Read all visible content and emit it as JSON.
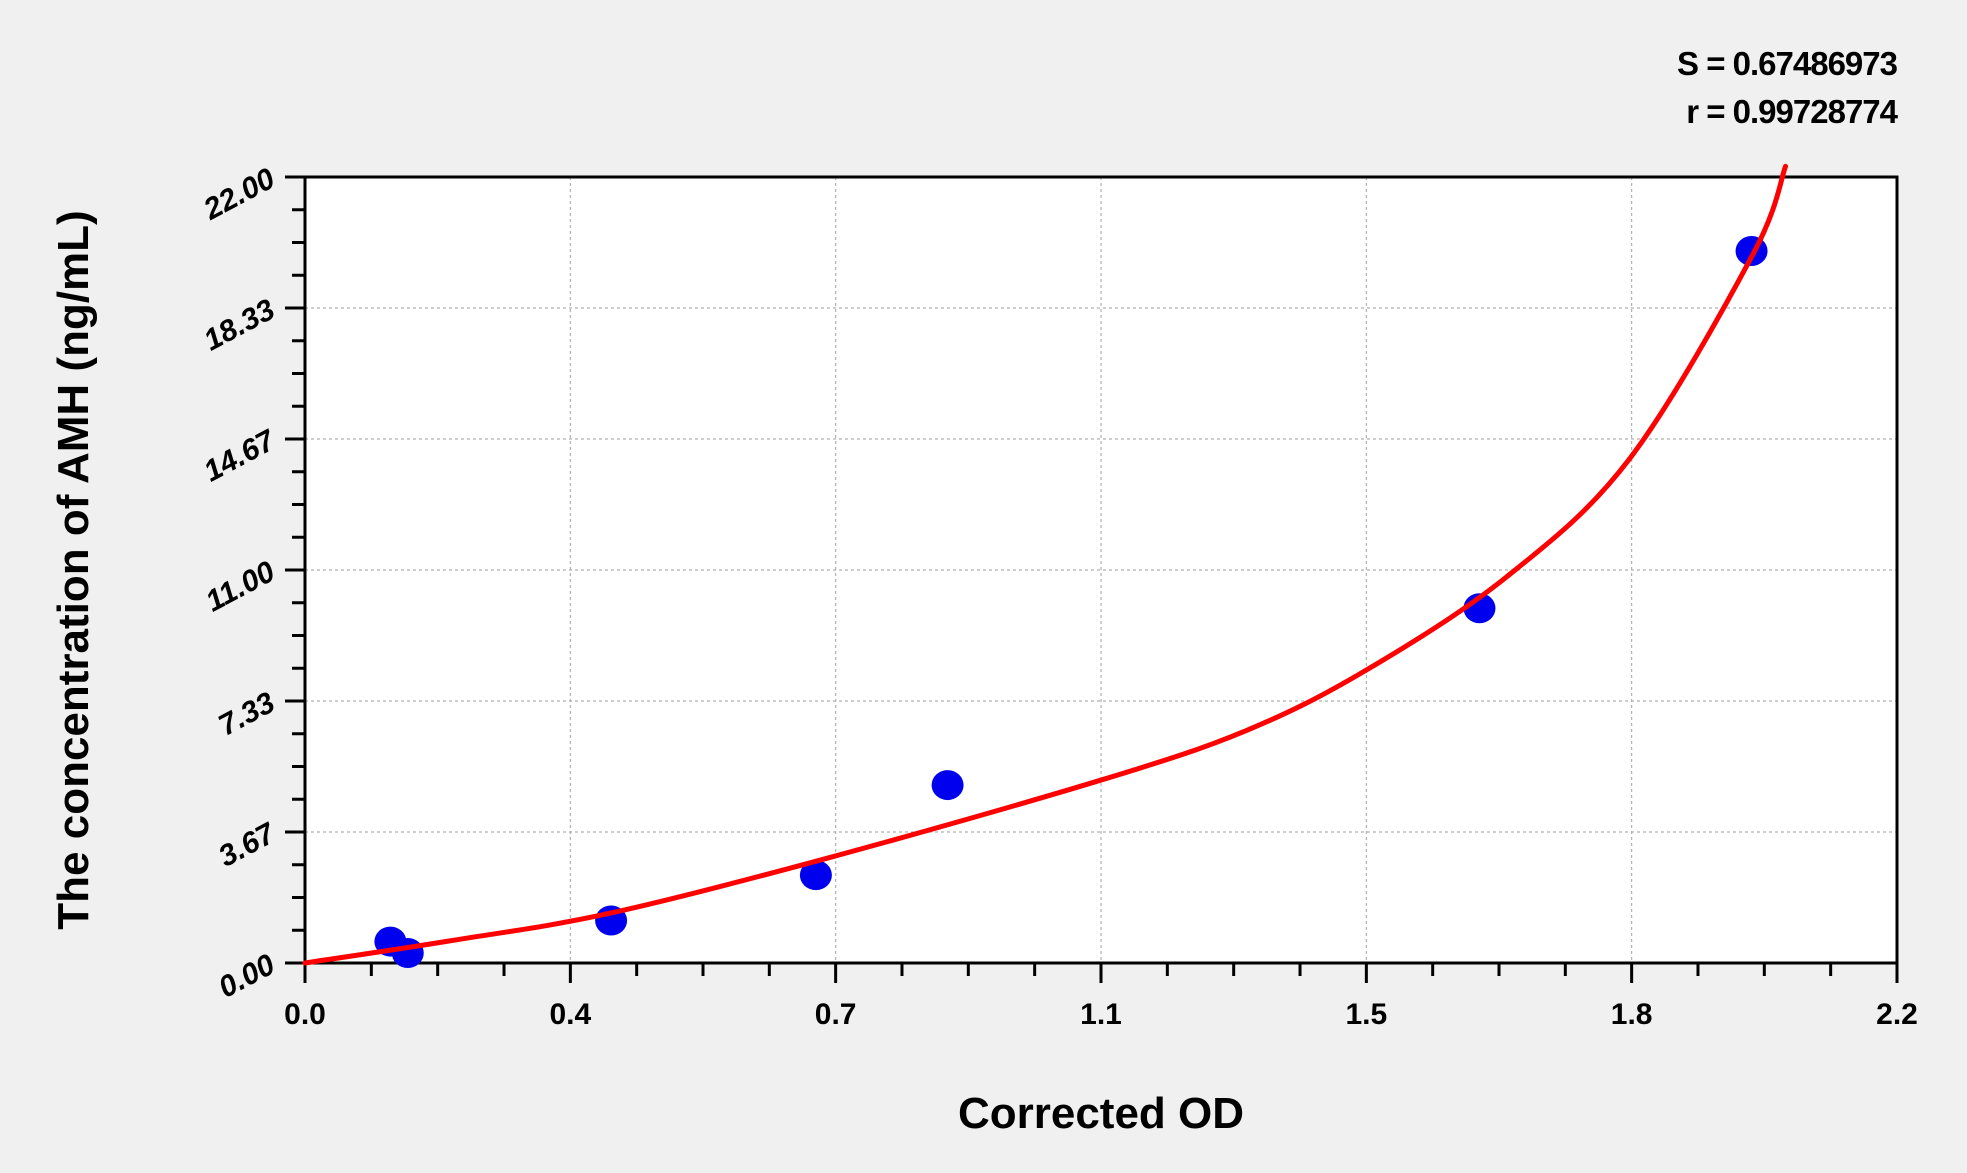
{
  "chart_data": {
    "type": "scatter",
    "title": "",
    "xlabel": "Corrected OD",
    "ylabel": "The concentration of AMH (ng/mL)",
    "xlim": [
      0,
      2.2
    ],
    "ylim": [
      0,
      22
    ],
    "x_ticks": [
      0,
      0.3667,
      0.7333,
      1.1,
      1.4667,
      1.8333,
      2.2
    ],
    "x_tick_labels": [
      "0.0",
      "0.4",
      "0.7",
      "1.1",
      "1.5",
      "1.8",
      "2.2"
    ],
    "y_ticks": [
      0,
      3.667,
      7.333,
      11,
      14.667,
      18.333,
      22
    ],
    "y_tick_labels": [
      "0.00",
      "3.67",
      "7.33",
      "11.00",
      "14.67",
      "18.33",
      "22.00"
    ],
    "grid": true,
    "annotations": [
      "S = 0.67486973",
      "r = 0.99728774"
    ],
    "points": {
      "x": [
        0.118,
        0.142,
        0.423,
        0.706,
        0.888,
        1.623,
        1.999
      ],
      "y": [
        0.6,
        0.28,
        1.19,
        2.46,
        4.98,
        9.93,
        19.93
      ],
      "color": "#0000ee"
    },
    "fit_curve": {
      "x": [
        0.0,
        0.2,
        0.423,
        0.73,
        1.1,
        1.3,
        1.465,
        1.66,
        1.83,
        2.0,
        2.046
      ],
      "y": [
        0.0,
        0.62,
        1.4,
        2.98,
        5.12,
        6.5,
        8.18,
        10.8,
        14.1,
        19.8,
        22.3
      ],
      "color": "#ff0000"
    },
    "colors": {
      "background": "#f0f0f0",
      "plot_background": "#ffffff",
      "grid": "#b0b0b0"
    }
  }
}
